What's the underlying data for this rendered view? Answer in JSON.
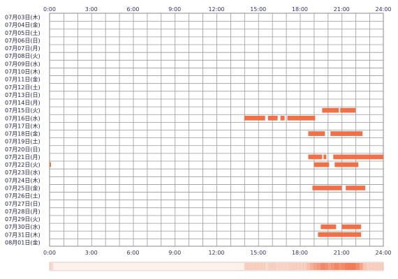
{
  "chart_data": {
    "type": "heatmap",
    "x_ticks": [
      "0:00",
      "3:00",
      "6:00",
      "9:00",
      "12:00",
      "15:00",
      "18:00",
      "21:00",
      "24:00"
    ],
    "x_range": [
      0,
      24
    ],
    "grid": true,
    "days": [
      "07月03日(木)",
      "07月04日(金)",
      "07月05日(土)",
      "07月06日(日)",
      "07月07日(月)",
      "07月08日(火)",
      "07月09日(水)",
      "07月10日(木)",
      "07月11日(金)",
      "07月12日(土)",
      "07月13日(日)",
      "07月14日(月)",
      "07月15日(火)",
      "07月16日(水)",
      "07月17日(木)",
      "07月18日(金)",
      "07月19日(土)",
      "07月20日(日)",
      "07月21日(月)",
      "07月22日(火)",
      "07月23日(水)",
      "07月24日(木)",
      "07月25日(金)",
      "07月26日(土)",
      "07月27日(日)",
      "07月28日(月)",
      "07月29日(火)",
      "07月30日(水)",
      "07月31日(木)",
      "08月01日(金)"
    ],
    "active_color": "#f07048",
    "segments": [
      {
        "day": 12,
        "start": 19.6,
        "end": 20.8
      },
      {
        "day": 12,
        "start": 20.9,
        "end": 22.0
      },
      {
        "day": 13,
        "start": 14.0,
        "end": 15.5
      },
      {
        "day": 13,
        "start": 15.7,
        "end": 16.4
      },
      {
        "day": 13,
        "start": 16.6,
        "end": 16.9
      },
      {
        "day": 13,
        "start": 17.1,
        "end": 19.1
      },
      {
        "day": 15,
        "start": 18.6,
        "end": 19.8
      },
      {
        "day": 15,
        "start": 20.2,
        "end": 22.5
      },
      {
        "day": 18,
        "start": 18.6,
        "end": 19.6
      },
      {
        "day": 18,
        "start": 19.7,
        "end": 19.9
      },
      {
        "day": 18,
        "start": 20.4,
        "end": 24.0
      },
      {
        "day": 19,
        "start": 0.0,
        "end": 0.1
      },
      {
        "day": 19,
        "start": 19.0,
        "end": 20.1
      },
      {
        "day": 19,
        "start": 20.5,
        "end": 22.2
      },
      {
        "day": 22,
        "start": 18.9,
        "end": 21.0
      },
      {
        "day": 22,
        "start": 21.3,
        "end": 22.7
      },
      {
        "day": 27,
        "start": 19.5,
        "end": 20.6
      },
      {
        "day": 27,
        "start": 21.0,
        "end": 22.4
      },
      {
        "day": 28,
        "start": 19.3,
        "end": 22.4
      }
    ]
  }
}
